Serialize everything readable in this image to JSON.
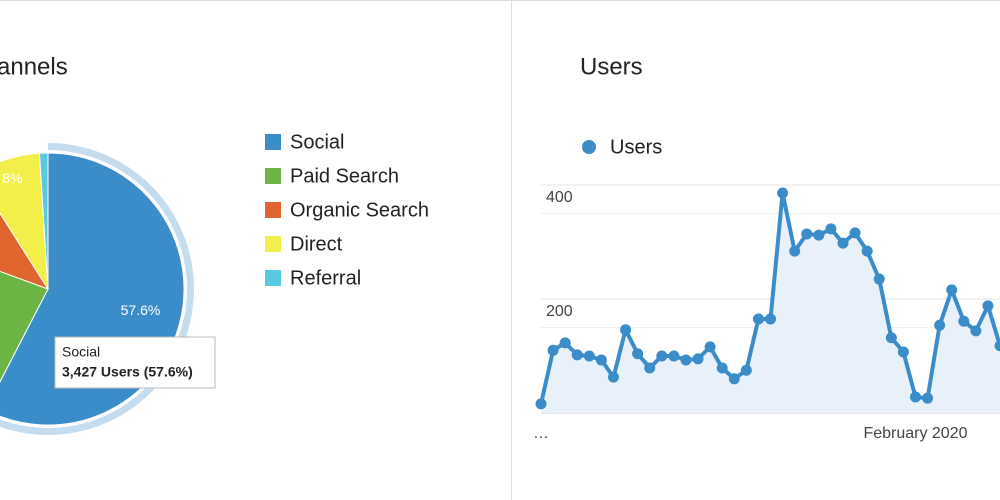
{
  "chart_data": [
    {
      "type": "pie",
      "title": "annels",
      "categories": [
        "Social",
        "Paid Search",
        "Organic Search",
        "Direct",
        "Referral"
      ],
      "values": [
        57.6,
        23,
        10.4,
        8,
        1
      ],
      "value_labels": [
        "57.6%",
        null,
        null,
        "8%",
        null
      ],
      "colors": [
        "#3a8dc9",
        "#6cb544",
        "#e0642d",
        "#f2ee4a",
        "#5bc8e3"
      ],
      "tooltip": {
        "title": "Social",
        "text": "3,427 Users (57.6%)"
      }
    },
    {
      "type": "line",
      "title": "Users",
      "categories": [
        "…",
        null,
        null,
        null,
        null,
        null,
        null,
        null,
        null,
        null,
        null,
        null,
        null,
        null,
        null,
        null,
        null,
        null,
        null,
        null,
        null,
        null,
        null,
        null,
        null,
        null,
        null,
        null,
        null,
        null,
        null,
        "February 2020",
        null,
        null,
        null,
        null,
        null,
        null,
        null
      ],
      "series": [
        {
          "name": "Users",
          "color": "#3a8dc9",
          "values": [
            16,
            110,
            123,
            102,
            100,
            93,
            63,
            146,
            104,
            79,
            100,
            100,
            93,
            95,
            116,
            79,
            60,
            75,
            165,
            165,
            386,
            284,
            314,
            312,
            323,
            298,
            316,
            284,
            235,
            132,
            107,
            28,
            26,
            154,
            216,
            161,
            144,
            188,
            118
          ]
        }
      ],
      "ylim": [
        0,
        400
      ],
      "yticks": [
        200,
        400
      ],
      "grid": true
    }
  ]
}
